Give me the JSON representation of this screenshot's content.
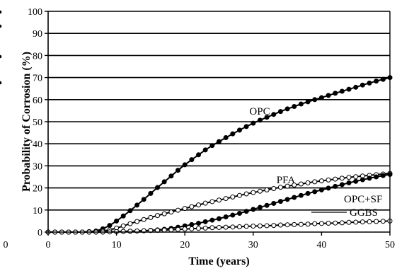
{
  "chart_data": {
    "type": "line",
    "title": "",
    "xlabel": "Time (years)",
    "ylabel": "Probability of Corrosion (%)",
    "xlim": [
      0,
      50
    ],
    "ylim": [
      0,
      100
    ],
    "xticks": [
      "0",
      "10",
      "20",
      "30",
      "40",
      "50"
    ],
    "yticks": [
      "0",
      "10",
      "20",
      "30",
      "40",
      "50",
      "60",
      "70",
      "80",
      "90",
      "100"
    ],
    "grid": "horizontal",
    "legend": "none (inline labels)",
    "clipped_left_tick_label": "0",
    "colors": {
      "line": "#000000",
      "background": "#ffffff"
    },
    "x": [
      0,
      1,
      2,
      3,
      4,
      5,
      6,
      7,
      8,
      9,
      10,
      11,
      12,
      13,
      14,
      15,
      16,
      17,
      18,
      19,
      20,
      21,
      22,
      23,
      24,
      25,
      26,
      27,
      28,
      29,
      30,
      31,
      32,
      33,
      34,
      35,
      36,
      37,
      38,
      39,
      40,
      41,
      42,
      43,
      44,
      45,
      46,
      47,
      48,
      49,
      50
    ],
    "series": [
      {
        "name": "OPC",
        "marker": "filled",
        "values": [
          0,
          0,
          0,
          0,
          0,
          0,
          0.2,
          0.5,
          1.5,
          3,
          5,
          7.3,
          9.7,
          12.2,
          14.8,
          17.5,
          20.2,
          22.8,
          25.4,
          28,
          30.5,
          32.8,
          35,
          37.2,
          39.2,
          41,
          42.8,
          44.5,
          46.2,
          47.8,
          49.3,
          50.7,
          52,
          53.3,
          54.6,
          55.8,
          56.9,
          58,
          59,
          60,
          60.9,
          61.9,
          62.9,
          63.8,
          64.7,
          65.6,
          66.6,
          67.5,
          68.4,
          69.2,
          70
        ]
      },
      {
        "name": "PFA",
        "marker": "open",
        "values": [
          0,
          0,
          0,
          0,
          0,
          0,
          0.1,
          0.2,
          0.5,
          1,
          1.8,
          2.8,
          3.8,
          4.8,
          5.7,
          6.6,
          7.5,
          8.3,
          9.1,
          9.9,
          10.7,
          11.5,
          12.3,
          13.1,
          13.8,
          14.5,
          15.2,
          15.9,
          16.6,
          17.3,
          17.9,
          18.5,
          19.1,
          19.7,
          20.3,
          20.8,
          21.3,
          21.8,
          22.3,
          22.8,
          23.2,
          23.6,
          24,
          24.4,
          24.8,
          25.1,
          25.4,
          25.7,
          26,
          26.3,
          26.6
        ]
      },
      {
        "name": "OPC+SF",
        "marker": "filled",
        "values": [
          0,
          0,
          0,
          0,
          0,
          0,
          0,
          0,
          0,
          0.1,
          0.2,
          0.3,
          0.4,
          0.5,
          0.6,
          0.8,
          1,
          1.3,
          1.7,
          2.2,
          2.8,
          3.4,
          4,
          4.7,
          5.4,
          6.1,
          6.9,
          7.7,
          8.5,
          9.4,
          10.3,
          11.2,
          12.1,
          13,
          13.9,
          14.8,
          15.7,
          16.6,
          17.5,
          18.3,
          19.1,
          19.9,
          20.7,
          21.5,
          22.3,
          23,
          23.7,
          24.4,
          25,
          25.6,
          26.1
        ]
      },
      {
        "name": "GGBS",
        "marker": "open",
        "values": [
          0,
          0,
          0,
          0,
          0,
          0,
          0,
          0,
          0.05,
          0.1,
          0.2,
          0.3,
          0.4,
          0.5,
          0.6,
          0.7,
          0.8,
          0.9,
          1,
          1.2,
          1.4,
          1.5,
          1.7,
          1.8,
          2,
          2.1,
          2.2,
          2.3,
          2.4,
          2.6,
          2.7,
          2.8,
          2.9,
          3,
          3.2,
          3.3,
          3.4,
          3.5,
          3.6,
          3.8,
          3.9,
          4,
          4.1,
          4.2,
          4.4,
          4.5,
          4.6,
          4.7,
          4.8,
          4.9,
          5
        ]
      }
    ]
  }
}
